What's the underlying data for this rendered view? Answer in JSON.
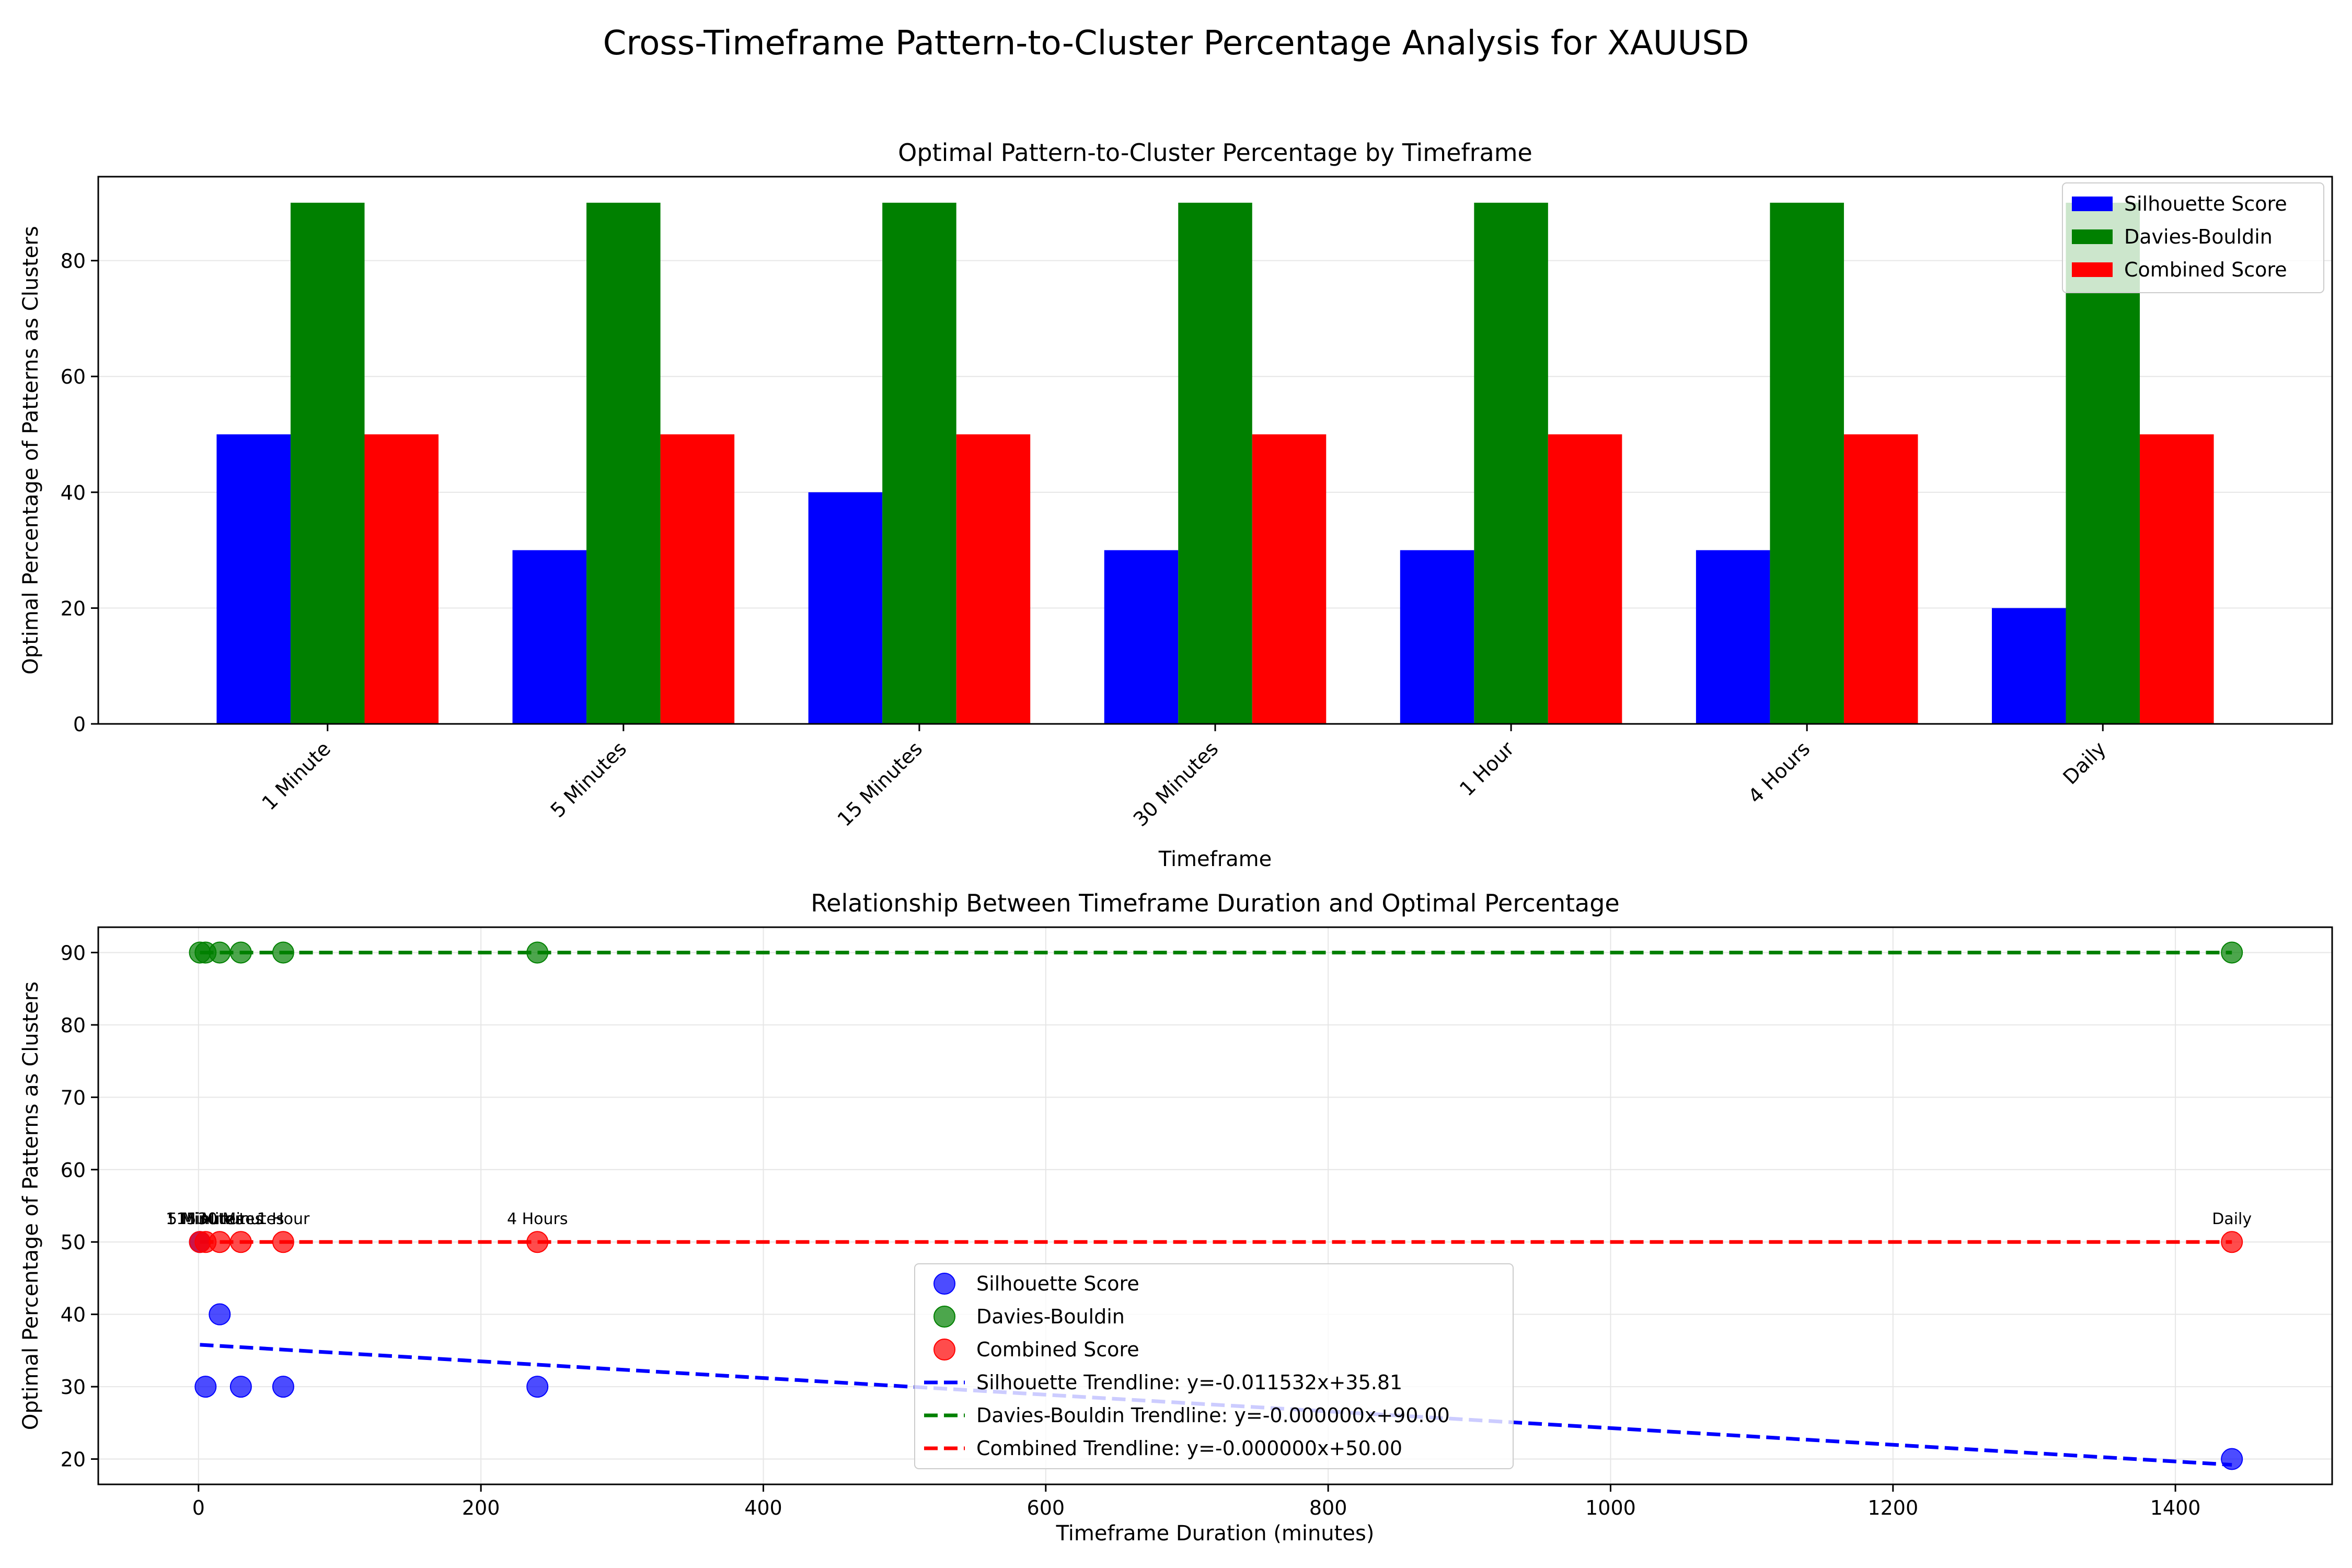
{
  "figure": {
    "title": "Cross-Timeframe Pattern-to-Cluster Percentage Analysis for XAUUSD"
  },
  "colors": {
    "silhouette": "#0000ff",
    "davies": "#008000",
    "combined": "#ff0000",
    "grid": "#e6e6e6"
  },
  "chart_data": [
    {
      "type": "bar",
      "title": "Optimal Pattern-to-Cluster Percentage by Timeframe",
      "xlabel": "Timeframe",
      "ylabel": "Optimal Percentage of Patterns as Clusters",
      "categories": [
        "1 Minute",
        "5 Minutes",
        "15 Minutes",
        "30 Minutes",
        "1 Hour",
        "4 Hours",
        "Daily"
      ],
      "series": [
        {
          "name": "Silhouette Score",
          "values": [
            50,
            30,
            40,
            30,
            30,
            30,
            20
          ]
        },
        {
          "name": "Davies-Bouldin",
          "values": [
            90,
            90,
            90,
            90,
            90,
            90,
            90
          ]
        },
        {
          "name": "Combined Score",
          "values": [
            50,
            50,
            50,
            50,
            50,
            50,
            50
          ]
        }
      ],
      "ylim": [
        0,
        94.5
      ],
      "yticks": [
        0,
        20,
        40,
        60,
        80
      ],
      "grid": true,
      "legend": "top-right"
    },
    {
      "type": "scatter",
      "title": "Relationship Between Timeframe Duration and Optimal Percentage",
      "xlabel": "Timeframe Duration (minutes)",
      "ylabel": "Optimal Percentage of Patterns as Clusters",
      "x": [
        1,
        5,
        15,
        30,
        60,
        240,
        1440
      ],
      "point_labels": [
        "1 Minute",
        "5 Minutes",
        "15 Minutes",
        "30 Minutes",
        "1 Hour",
        "4 Hours",
        "Daily"
      ],
      "series": [
        {
          "name": "Silhouette Score",
          "values": [
            50,
            30,
            40,
            30,
            30,
            30,
            20
          ]
        },
        {
          "name": "Davies-Bouldin",
          "values": [
            90,
            90,
            90,
            90,
            90,
            90,
            90
          ]
        },
        {
          "name": "Combined Score",
          "values": [
            50,
            50,
            50,
            50,
            50,
            50,
            50
          ]
        }
      ],
      "trendlines": [
        {
          "name": "Silhouette Trendline: y=-0.011532x+35.81",
          "slope": -0.011532,
          "intercept": 35.81
        },
        {
          "name": "Davies-Bouldin Trendline: y=-0.000000x+90.00",
          "slope": 0,
          "intercept": 90.0
        },
        {
          "name": "Combined Trendline: y=-0.000000x+50.00",
          "slope": 0,
          "intercept": 50.0
        }
      ],
      "xlim": [
        -71,
        1511
      ],
      "ylim": [
        16.5,
        93.5
      ],
      "xticks": [
        0,
        200,
        400,
        600,
        800,
        1000,
        1200,
        1400
      ],
      "yticks": [
        20,
        30,
        40,
        50,
        60,
        70,
        80,
        90
      ],
      "grid": true,
      "legend": "lower-center"
    }
  ]
}
